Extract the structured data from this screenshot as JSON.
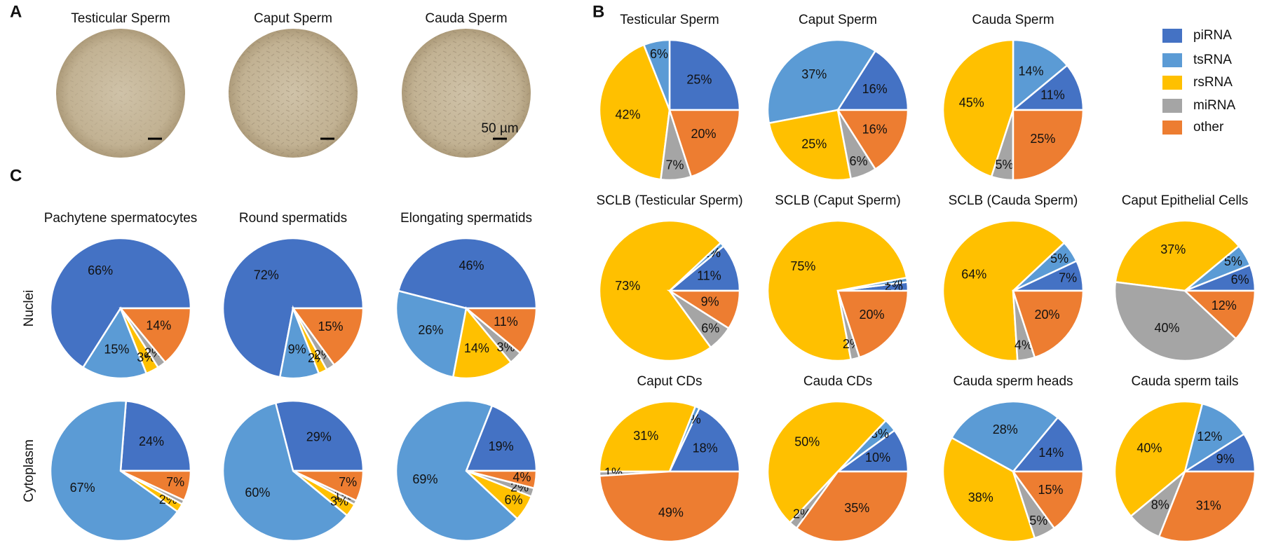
{
  "panel_labels": [
    "A",
    "B",
    "C"
  ],
  "panel_a": {
    "titles": [
      "Testicular Sperm",
      "Caput Sperm",
      "Cauda Sperm"
    ],
    "scale_bar": "50 µm"
  },
  "panel_c": {
    "row_labels": [
      "Nuclei",
      "Cytoplasm"
    ]
  },
  "legend": {
    "categories": [
      "piRNA",
      "tsRNA",
      "rsRNA",
      "miRNA",
      "other"
    ],
    "colors": [
      "#4472c4",
      "#5b9bd5",
      "#ffc000",
      "#a5a5a5",
      "#ed7d31"
    ]
  },
  "chart_data": [
    {
      "type": "pie",
      "title": "Testicular Sperm",
      "values": [
        25,
        6,
        42,
        7,
        20
      ],
      "value_labels": [
        "25%",
        "6%",
        "42%",
        "7%",
        "20%"
      ]
    },
    {
      "type": "pie",
      "title": "Caput Sperm",
      "values": [
        16,
        37,
        25,
        6,
        16
      ],
      "value_labels": [
        "16%",
        "37%",
        "25%",
        "6%",
        "16%"
      ]
    },
    {
      "type": "pie",
      "title": "Cauda Sperm",
      "values": [
        11,
        14,
        45,
        5,
        25
      ],
      "value_labels": [
        "11%",
        "14%",
        "45%",
        "5%",
        "25%"
      ]
    },
    {
      "type": "pie",
      "title": "SCLB (Testicular Sperm)",
      "values": [
        11,
        1,
        73,
        6,
        9
      ],
      "value_labels": [
        "11%",
        "1%",
        "73%",
        "6%",
        "9%"
      ]
    },
    {
      "type": "pie",
      "title": "SCLB (Caput Sperm)",
      "values": [
        2,
        1,
        75,
        2,
        20
      ],
      "value_labels": [
        "2%",
        "1%",
        "75%",
        "2%",
        "20%"
      ]
    },
    {
      "type": "pie",
      "title": "SCLB (Cauda Sperm)",
      "values": [
        7,
        5,
        64,
        4,
        20
      ],
      "value_labels": [
        "7%",
        "5%",
        "64%",
        "4%",
        "20%"
      ]
    },
    {
      "type": "pie",
      "title": "Caput Epithelial Cells",
      "values": [
        6,
        5,
        37,
        40,
        12
      ],
      "value_labels": [
        "6%",
        "5%",
        "37%",
        "40%",
        "12%"
      ]
    },
    {
      "type": "pie",
      "title": "Caput CDs",
      "values": [
        18,
        1,
        31,
        1,
        49
      ],
      "value_labels": [
        "18%",
        "1%",
        "31%",
        "1%",
        "49%"
      ]
    },
    {
      "type": "pie",
      "title": "Cauda CDs",
      "values": [
        10,
        3,
        50,
        2,
        35
      ],
      "value_labels": [
        "10%",
        "3%",
        "50%",
        "2%",
        "35%"
      ]
    },
    {
      "type": "pie",
      "title": "Cauda sperm heads",
      "values": [
        14,
        28,
        38,
        5,
        15
      ],
      "value_labels": [
        "14%",
        "28%",
        "38%",
        "5%",
        "15%"
      ]
    },
    {
      "type": "pie",
      "title": "Cauda sperm tails",
      "values": [
        9,
        12,
        40,
        8,
        31
      ],
      "value_labels": [
        "9%",
        "12%",
        "40%",
        "8%",
        "31%"
      ]
    },
    {
      "type": "pie",
      "title": "Pachytene spermatocytes",
      "values": [
        66,
        15,
        3,
        2,
        14
      ],
      "value_labels": [
        "66%",
        "15%",
        "3%",
        "2%",
        "14%"
      ]
    },
    {
      "type": "pie",
      "title": "Round spermatids",
      "values": [
        72,
        9,
        2,
        2,
        15
      ],
      "value_labels": [
        "72%",
        "9%",
        "2%",
        "2%",
        "15%"
      ]
    },
    {
      "type": "pie",
      "title": "Elongating spermatids",
      "values": [
        46,
        26,
        14,
        3,
        11
      ],
      "value_labels": [
        "46%",
        "26%",
        "14%",
        "3%",
        "11%"
      ]
    },
    {
      "type": "pie",
      "values": [
        24,
        67,
        2,
        1,
        7
      ],
      "value_labels": [
        "24%",
        "67%",
        "2%",
        null,
        "7%"
      ]
    },
    {
      "type": "pie",
      "values": [
        29,
        60,
        3,
        1,
        7
      ],
      "value_labels": [
        "29%",
        "60%",
        "3%",
        "1%",
        "7%"
      ]
    },
    {
      "type": "pie",
      "values": [
        19,
        69,
        6,
        2,
        4
      ],
      "value_labels": [
        "19%",
        "69%",
        "6%",
        "2%",
        "4%"
      ]
    }
  ]
}
